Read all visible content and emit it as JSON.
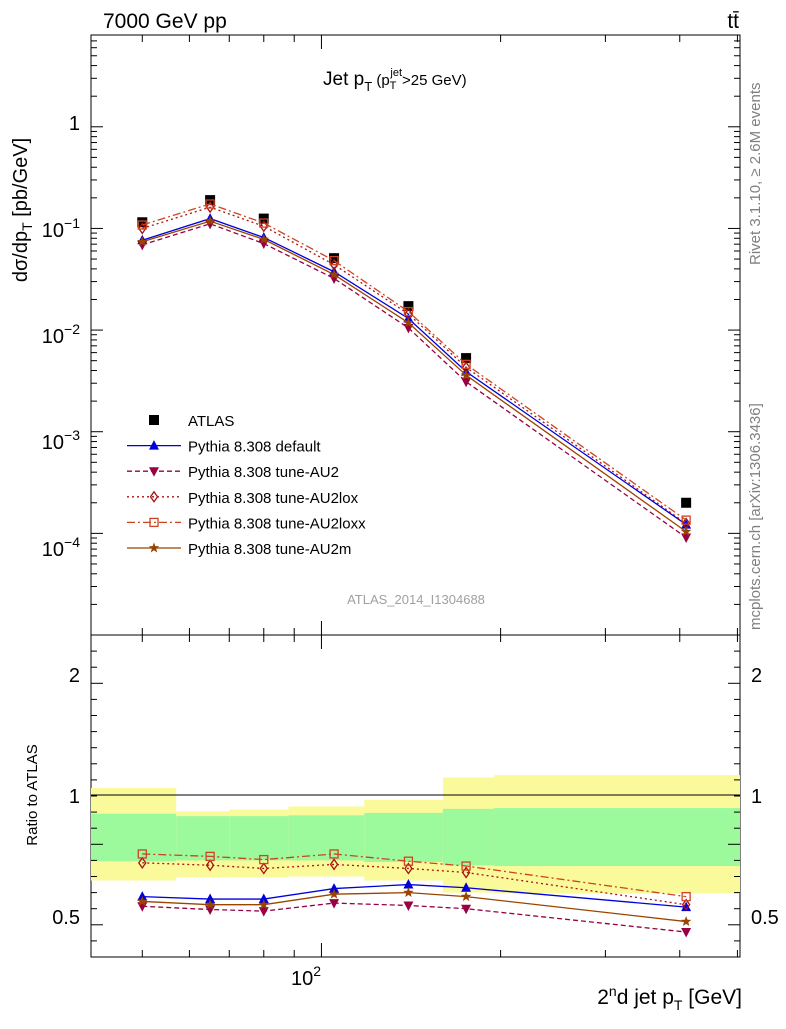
{
  "header": {
    "energy_label": "7000 GeV pp",
    "process_label": "tt̄"
  },
  "side_text": {
    "rivet": "Rivet 3.1.10, ≥ 2.6M events",
    "source": "mcplots.cern.ch [arXiv:1306.3436]"
  },
  "reference": "ATLAS_2014_I1304688",
  "chart_data": [
    {
      "type": "line",
      "panel": "main",
      "title": "Jet pT (pTjet>25 GeV)",
      "ylabel": "dσ/dpT [pb/GeV]",
      "xscale": "log",
      "yscale": "log",
      "xlim": [
        41,
        505
      ],
      "ylim": [
        1e-05,
        8
      ],
      "y_tick_labels": [
        "10⁻⁴",
        "10⁻³",
        "10⁻²",
        "10⁻¹",
        "1"
      ],
      "legend_position": "lower-left",
      "x": [
        50,
        65,
        80,
        105,
        140,
        175,
        410
      ],
      "series": [
        {
          "name": "ATLAS",
          "values": [
            0.115,
            0.19,
            0.125,
            0.051,
            0.0172,
            0.0053,
            0.0002
          ]
        },
        {
          "name": "Pythia 8.308 default",
          "values": [
            0.0765,
            0.125,
            0.0815,
            0.0375,
            0.013,
            0.0039,
            0.000122
          ]
        },
        {
          "name": "Pythia 8.308 tune-AU2",
          "values": [
            0.069,
            0.111,
            0.071,
            0.0322,
            0.0105,
            0.0031,
            9.1e-05
          ]
        },
        {
          "name": "Pythia 8.308 tune-AU2lox",
          "values": [
            0.1,
            0.162,
            0.105,
            0.044,
            0.0144,
            0.0043,
            0.000125
          ]
        },
        {
          "name": "Pythia 8.308 tune-AU2loxx",
          "values": [
            0.108,
            0.174,
            0.113,
            0.0482,
            0.0152,
            0.0046,
            0.000135
          ]
        },
        {
          "name": "Pythia 8.308 tune-AU2m",
          "values": [
            0.074,
            0.118,
            0.078,
            0.0352,
            0.0118,
            0.0036,
            0.000104
          ]
        }
      ]
    },
    {
      "type": "line",
      "panel": "ratio",
      "ylabel": "Ratio to ATLAS",
      "xlabel": "2ⁿd jet pT [GeV]",
      "xscale": "log",
      "xlim": [
        41,
        505
      ],
      "ylim": [
        0.3,
        2.3
      ],
      "y_ticks": [
        0.5,
        1,
        2
      ],
      "x_tick_label": "10²",
      "uncertainty_bins": {
        "edges": [
          41,
          57,
          70,
          88,
          118,
          160,
          195,
          505
        ],
        "stat_lo": [
          0.895,
          0.9,
          0.9,
          0.9,
          0.89,
          0.87,
          0.865
        ],
        "stat_hi": [
          1.19,
          1.175,
          1.175,
          1.18,
          1.195,
          1.22,
          1.225
        ],
        "syst_lo": [
          0.775,
          0.795,
          0.795,
          0.8,
          0.775,
          0.7,
          0.695
        ],
        "syst_hi": [
          1.35,
          1.205,
          1.215,
          1.235,
          1.275,
          1.415,
          1.43
        ]
      },
      "series": [
        {
          "name": "Pythia 8.308 default",
          "values": [
            0.675,
            0.66,
            0.66,
            0.725,
            0.75,
            0.73,
            0.61
          ]
        },
        {
          "name": "Pythia 8.308 tune-AU2",
          "values": [
            0.615,
            0.595,
            0.585,
            0.635,
            0.62,
            0.6,
            0.455
          ]
        },
        {
          "name": "Pythia 8.308 tune-AU2lox",
          "values": [
            0.885,
            0.87,
            0.85,
            0.875,
            0.85,
            0.825,
            0.625
          ]
        },
        {
          "name": "Pythia 8.308 tune-AU2loxx",
          "values": [
            0.94,
            0.925,
            0.905,
            0.94,
            0.895,
            0.865,
            0.675
          ]
        },
        {
          "name": "Pythia 8.308 tune-AU2m",
          "values": [
            0.645,
            0.625,
            0.625,
            0.69,
            0.7,
            0.675,
            0.52
          ]
        }
      ]
    }
  ],
  "styles": [
    {
      "color": "#000000",
      "marker": "square",
      "dash": ""
    },
    {
      "color": "#0000dd",
      "marker": "triangle-up",
      "dash": ""
    },
    {
      "color": "#990044",
      "marker": "triangle-down",
      "dash": "5,3"
    },
    {
      "color": "#aa1111",
      "marker": "diamond-open",
      "dash": "2,3"
    },
    {
      "color": "#cc4422",
      "marker": "square-open",
      "dash": "8,3,2,3"
    },
    {
      "color": "#994400",
      "marker": "star",
      "dash": ""
    }
  ],
  "band_colors": {
    "stat": "#9cf99c",
    "syst": "#fafa9a"
  }
}
